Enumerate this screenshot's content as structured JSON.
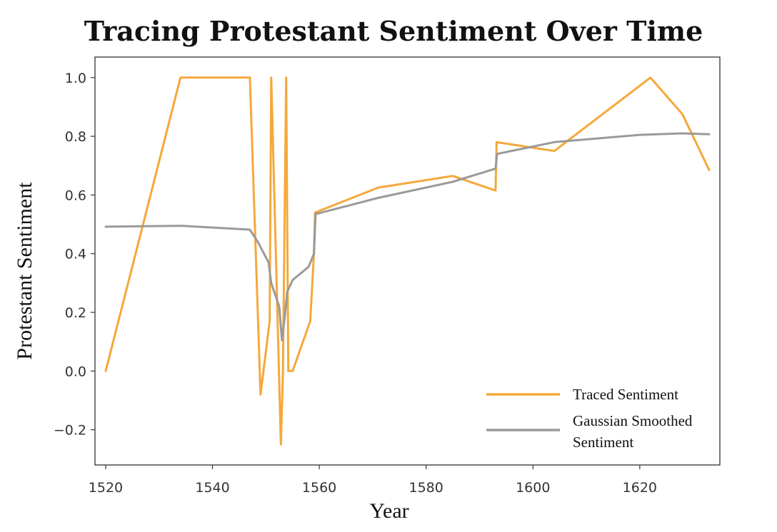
{
  "chart_data": {
    "type": "line",
    "title": "Tracing Protestant Sentiment Over Time",
    "xlabel": "Year",
    "ylabel": "Protestant Sentiment",
    "xlim": [
      1518,
      1635
    ],
    "ylim": [
      -0.32,
      1.07
    ],
    "xticks": [
      1520,
      1540,
      1560,
      1580,
      1600,
      1620
    ],
    "yticks": [
      -0.2,
      0.0,
      0.2,
      0.4,
      0.6,
      0.8,
      1.0
    ],
    "xtick_labels": [
      "1520",
      "1540",
      "1560",
      "1580",
      "1600",
      "1620"
    ],
    "ytick_labels": [
      "−0.2",
      "0.0",
      "0.2",
      "0.4",
      "0.6",
      "0.8",
      "1.0"
    ],
    "grid": false,
    "legend_position": "lower-right",
    "series": [
      {
        "name": "Traced Sentiment",
        "color": "#f5a83a",
        "x": [
          1520,
          1534,
          1547,
          1549,
          1550.7,
          1551,
          1552.8,
          1553.2,
          1553.8,
          1554.2,
          1555,
          1558.3,
          1559,
          1559.2,
          1571,
          1585,
          1593,
          1593.2,
          1604,
          1622,
          1628,
          1633
        ],
        "y": [
          0.0,
          1.0,
          1.0,
          -0.08,
          0.17,
          1.0,
          -0.25,
          0.0,
          1.0,
          0.0,
          0.0,
          0.17,
          0.4,
          0.54,
          0.625,
          0.665,
          0.615,
          0.78,
          0.75,
          1.0,
          0.875,
          0.685
        ]
      },
      {
        "name": "Gaussian Smoothed Sentiment",
        "color": "#9a9a9a",
        "x": [
          1520,
          1534,
          1547,
          1548.5,
          1550.5,
          1551,
          1552.5,
          1553,
          1553.5,
          1554,
          1555,
          1558,
          1559,
          1559.3,
          1571,
          1585,
          1593,
          1593.3,
          1600,
          1604,
          1620,
          1628,
          1633
        ],
        "y": [
          0.492,
          0.495,
          0.482,
          0.44,
          0.37,
          0.3,
          0.22,
          0.105,
          0.18,
          0.27,
          0.31,
          0.355,
          0.4,
          0.535,
          0.59,
          0.645,
          0.69,
          0.74,
          0.765,
          0.78,
          0.805,
          0.81,
          0.807
        ]
      }
    ],
    "legend": {
      "entries": [
        {
          "lines": [
            "Traced Sentiment"
          ],
          "color": "#f5a83a"
        },
        {
          "lines": [
            "Gaussian Smoothed",
            "Sentiment"
          ],
          "color": "#9a9a9a"
        }
      ]
    }
  }
}
